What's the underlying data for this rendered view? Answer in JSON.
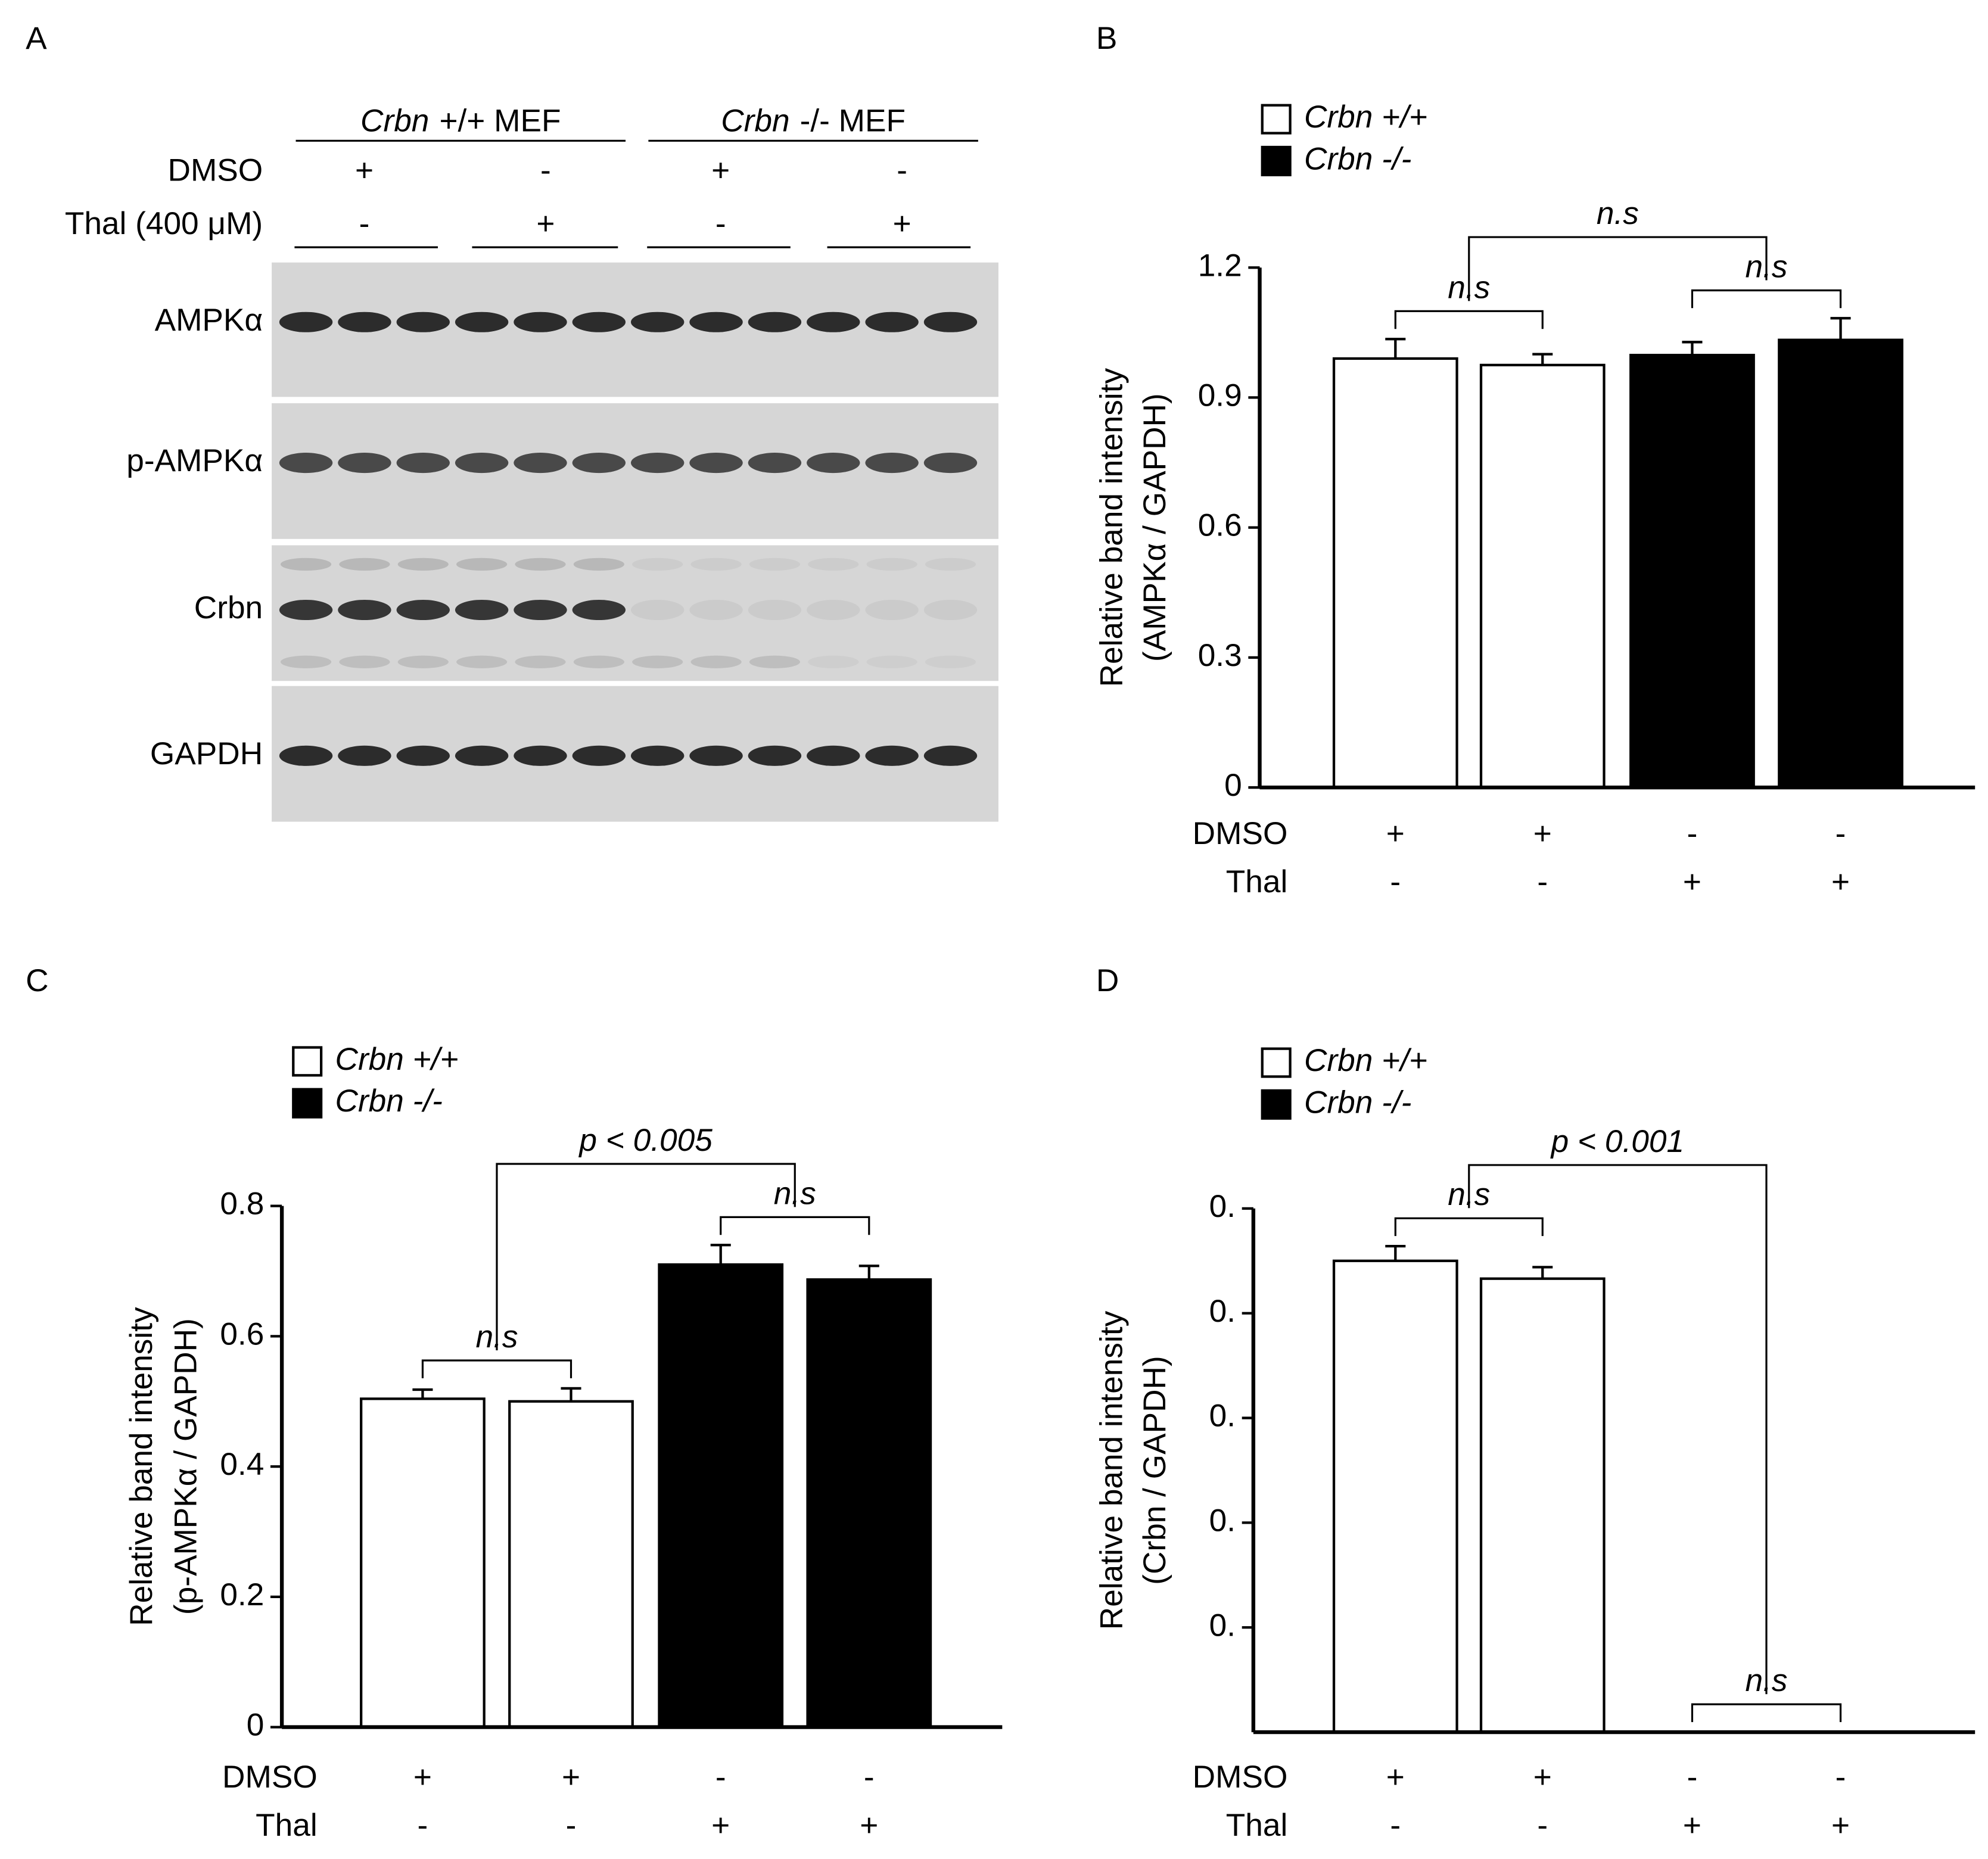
{
  "figure_a": {
    "panel_label": "A",
    "groups": [
      {
        "gene": "Crbn",
        "label": "+/+ MEF"
      },
      {
        "gene": "Crbn",
        "label": "-/- MEF"
      }
    ],
    "treatments": [
      {
        "name": "DMSO",
        "marks": [
          "+",
          "-",
          "+",
          "-"
        ]
      },
      {
        "name": "Thal (400 μM)",
        "marks": [
          "-",
          "+",
          "-",
          "+"
        ]
      }
    ],
    "blots": [
      "AMPKα",
      "p-AMPKα",
      "Crbn",
      "GAPDH"
    ]
  },
  "chart_data": [
    {
      "type": "bar",
      "panel_label": "B",
      "ylabel": [
        "Relative band intensity",
        "(AMPKα / GAPDH)"
      ],
      "ylim": [
        0,
        1.2
      ],
      "yticks": [
        0,
        0.3,
        0.6,
        0.9,
        1.2
      ],
      "conditions": [
        {
          "name": "DMSO",
          "marks": [
            "+",
            "+",
            "-",
            "-"
          ]
        },
        {
          "name": "Thal",
          "marks": [
            "-",
            "-",
            "+",
            "+"
          ]
        }
      ],
      "series": [
        {
          "name": "Crbn +/+",
          "color": "#ffffff",
          "values": [
            0.99,
            0.975,
            null,
            null
          ],
          "errors": [
            0.045,
            0.025,
            null,
            null
          ]
        },
        {
          "name": "Crbn -/-",
          "color": "#000000",
          "values": [
            null,
            null,
            0.998,
            1.033
          ],
          "errors": [
            null,
            null,
            0.03,
            0.05
          ]
        }
      ],
      "comparisons": [
        {
          "text": "n.s",
          "groups": [
            [
              0
            ],
            [
              1
            ]
          ]
        },
        {
          "text": "n.s",
          "groups": [
            [
              2
            ],
            [
              3
            ]
          ]
        },
        {
          "text": "n.s",
          "groups": [
            [
              0,
              1
            ],
            [
              2,
              3
            ]
          ]
        }
      ]
    },
    {
      "type": "bar",
      "panel_label": "C",
      "ylabel": [
        "Relative band intensity",
        "(p-AMPKα / GAPDH)"
      ],
      "ylim": [
        0,
        0.8
      ],
      "yticks": [
        0,
        0.2,
        0.4,
        0.6,
        0.8
      ],
      "conditions": [
        {
          "name": "DMSO",
          "marks": [
            "+",
            "+",
            "-",
            "-"
          ]
        },
        {
          "name": "Thal",
          "marks": [
            "-",
            "-",
            "+",
            "+"
          ]
        }
      ],
      "series": [
        {
          "name": "Crbn +/+",
          "color": "#ffffff",
          "values": [
            0.504,
            0.5,
            null,
            null
          ],
          "errors": [
            0.014,
            0.02,
            null,
            null
          ]
        },
        {
          "name": "Crbn -/-",
          "color": "#000000",
          "values": [
            null,
            null,
            0.71,
            0.687
          ],
          "errors": [
            null,
            null,
            0.03,
            0.021
          ]
        }
      ],
      "comparisons": [
        {
          "text": "n.s",
          "groups": [
            [
              0
            ],
            [
              1
            ]
          ]
        },
        {
          "text": "n.s",
          "groups": [
            [
              2
            ],
            [
              3
            ]
          ]
        },
        {
          "text": "p < 0.005",
          "groups": [
            [
              0,
              1
            ],
            [
              2,
              3
            ]
          ]
        }
      ]
    },
    {
      "type": "bar",
      "panel_label": "D",
      "ylabel": [
        "Relative band intensity",
        "(Crbn / GAPDH)"
      ],
      "ylim": [
        0,
        0.5
      ],
      "yticks": [
        {
          "value": 0.1,
          "label": "0."
        },
        {
          "value": 0.2,
          "label": "0."
        },
        {
          "value": 0.3,
          "label": "0."
        },
        {
          "value": 0.4,
          "label": "0."
        },
        {
          "value": 0.5,
          "label": "0."
        }
      ],
      "conditions": [
        {
          "name": "DMSO",
          "marks": [
            "+",
            "+",
            "-",
            "-"
          ]
        },
        {
          "name": "Thal",
          "marks": [
            "-",
            "-",
            "+",
            "+"
          ]
        }
      ],
      "series": [
        {
          "name": "Crbn +/+",
          "color": "#ffffff",
          "values": [
            0.45,
            0.433,
            null,
            null
          ],
          "errors": [
            0.014,
            0.011,
            null,
            null
          ]
        },
        {
          "name": "Crbn -/-",
          "color": "#000000",
          "values": [
            null,
            null,
            0,
            0
          ],
          "errors": [
            null,
            null,
            0,
            0
          ]
        }
      ],
      "comparisons": [
        {
          "text": "n.s",
          "groups": [
            [
              0
            ],
            [
              1
            ]
          ]
        },
        {
          "text": "n.s",
          "groups": [
            [
              2
            ],
            [
              3
            ]
          ]
        },
        {
          "text": "p < 0.001",
          "groups": [
            [
              0,
              1
            ],
            [
              2,
              3
            ]
          ]
        }
      ]
    }
  ]
}
